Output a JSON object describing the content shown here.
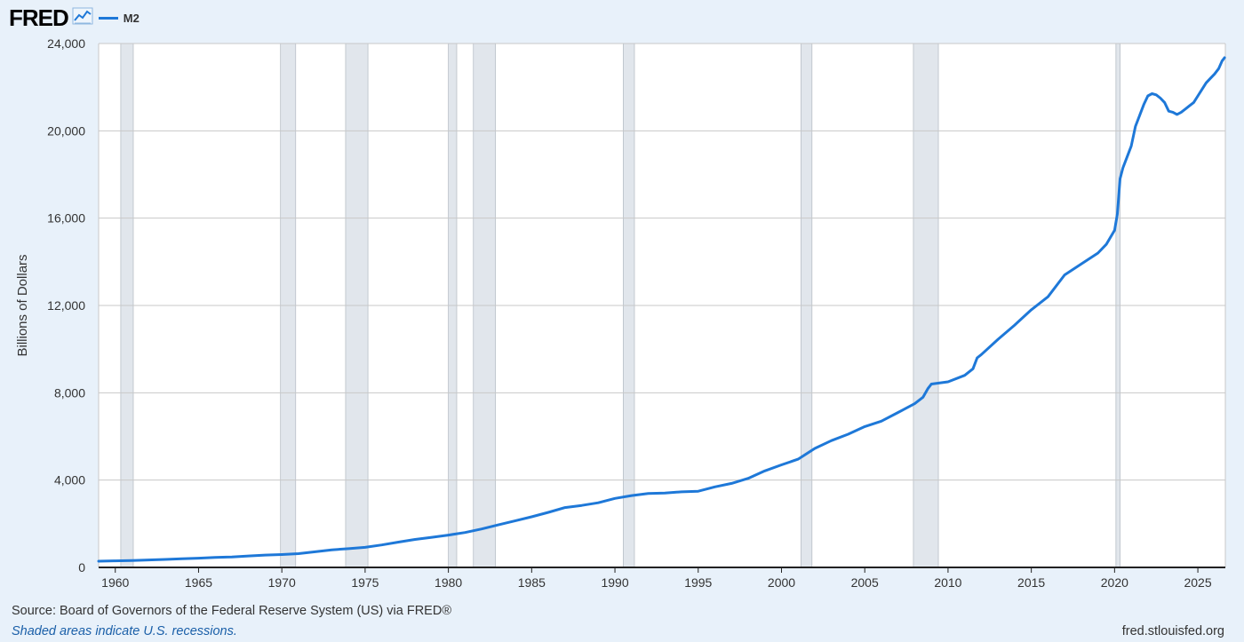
{
  "header": {
    "logo": "FRED",
    "legend_label": "M2"
  },
  "footer": {
    "source": "Source: Board of Governors of the Federal Reserve System (US) via FRED®",
    "recession_note": "Shaded areas indicate U.S. recessions.",
    "site": "fred.stlouisfed.org"
  },
  "colors": {
    "line": "#1e78d8",
    "recession": "#e1e6ec",
    "grid": "#c8c8c8",
    "background": "#e8f1fa",
    "plot_background": "#ffffff"
  },
  "icons": [
    "line-graph-icon"
  ],
  "chart_data": {
    "type": "line",
    "title": "",
    "xlabel": "",
    "ylabel": "Billions of Dollars",
    "xlim": [
      1959,
      2026.65
    ],
    "ylim": [
      0,
      24000
    ],
    "x_ticks": [
      1960,
      1965,
      1970,
      1975,
      1980,
      1985,
      1990,
      1995,
      2000,
      2005,
      2010,
      2015,
      2020,
      2025
    ],
    "y_ticks": [
      0,
      4000,
      8000,
      12000,
      16000,
      20000,
      24000
    ],
    "y_tick_labels": [
      "0",
      "4,000",
      "8,000",
      "12,000",
      "16,000",
      "20,000",
      "24,000"
    ],
    "grid": true,
    "legend": "top-left",
    "recessions": [
      [
        1960.33,
        1961.08
      ],
      [
        1969.92,
        1970.83
      ],
      [
        1973.83,
        1975.17
      ],
      [
        1980.0,
        1980.5
      ],
      [
        1981.5,
        1982.83
      ],
      [
        1990.5,
        1991.17
      ],
      [
        2001.17,
        2001.83
      ],
      [
        2007.92,
        2009.42
      ],
      [
        2020.08,
        2020.33
      ]
    ],
    "series": [
      {
        "name": "M2",
        "points": [
          [
            1959.0,
            286
          ],
          [
            1960.0,
            300
          ],
          [
            1961.0,
            315
          ],
          [
            1962.0,
            340
          ],
          [
            1963.0,
            368
          ],
          [
            1964.0,
            395
          ],
          [
            1965.0,
            425
          ],
          [
            1966.0,
            455
          ],
          [
            1967.0,
            480
          ],
          [
            1968.0,
            525
          ],
          [
            1969.0,
            565
          ],
          [
            1970.0,
            590
          ],
          [
            1971.0,
            630
          ],
          [
            1972.0,
            715
          ],
          [
            1973.0,
            805
          ],
          [
            1974.0,
            860
          ],
          [
            1975.0,
            920
          ],
          [
            1976.0,
            1030
          ],
          [
            1977.0,
            1160
          ],
          [
            1978.0,
            1280
          ],
          [
            1979.0,
            1380
          ],
          [
            1980.0,
            1480
          ],
          [
            1981.0,
            1600
          ],
          [
            1982.0,
            1760
          ],
          [
            1983.0,
            1950
          ],
          [
            1984.0,
            2130
          ],
          [
            1985.0,
            2320
          ],
          [
            1986.0,
            2520
          ],
          [
            1987.0,
            2740
          ],
          [
            1988.0,
            2840
          ],
          [
            1989.0,
            2960
          ],
          [
            1990.0,
            3160
          ],
          [
            1991.0,
            3290
          ],
          [
            1992.0,
            3390
          ],
          [
            1993.0,
            3410
          ],
          [
            1994.0,
            3460
          ],
          [
            1995.0,
            3490
          ],
          [
            1996.0,
            3690
          ],
          [
            1997.0,
            3850
          ],
          [
            1998.0,
            4080
          ],
          [
            1999.0,
            4420
          ],
          [
            2000.0,
            4700
          ],
          [
            2001.0,
            4960
          ],
          [
            2002.0,
            5450
          ],
          [
            2003.0,
            5810
          ],
          [
            2004.0,
            6100
          ],
          [
            2005.0,
            6450
          ],
          [
            2006.0,
            6700
          ],
          [
            2007.0,
            7100
          ],
          [
            2008.0,
            7500
          ],
          [
            2008.5,
            7800
          ],
          [
            2008.8,
            8200
          ],
          [
            2009.0,
            8400
          ],
          [
            2010.0,
            8500
          ],
          [
            2011.0,
            8800
          ],
          [
            2011.5,
            9100
          ],
          [
            2011.75,
            9600
          ],
          [
            2012.0,
            9750
          ],
          [
            2013.0,
            10450
          ],
          [
            2014.0,
            11100
          ],
          [
            2015.0,
            11800
          ],
          [
            2016.0,
            12400
          ],
          [
            2017.0,
            13400
          ],
          [
            2018.0,
            13900
          ],
          [
            2019.0,
            14400
          ],
          [
            2019.5,
            14800
          ],
          [
            2020.0,
            15450
          ],
          [
            2020.17,
            16200
          ],
          [
            2020.33,
            17800
          ],
          [
            2020.5,
            18300
          ],
          [
            2021.0,
            19300
          ],
          [
            2021.25,
            20200
          ],
          [
            2021.5,
            20700
          ],
          [
            2021.75,
            21200
          ],
          [
            2022.0,
            21600
          ],
          [
            2022.25,
            21700
          ],
          [
            2022.5,
            21650
          ],
          [
            2022.75,
            21500
          ],
          [
            2023.0,
            21300
          ],
          [
            2023.25,
            20900
          ],
          [
            2023.5,
            20850
          ],
          [
            2023.75,
            20750
          ],
          [
            2024.0,
            20850
          ],
          [
            2024.25,
            21000
          ],
          [
            2024.5,
            21150
          ],
          [
            2024.75,
            21300
          ],
          [
            2025.0,
            21600
          ],
          [
            2025.25,
            21900
          ],
          [
            2025.5,
            22200
          ],
          [
            2025.75,
            22400
          ],
          [
            2026.0,
            22600
          ],
          [
            2026.25,
            22850
          ],
          [
            2026.45,
            23200
          ],
          [
            2026.6,
            23350
          ]
        ]
      }
    ]
  }
}
